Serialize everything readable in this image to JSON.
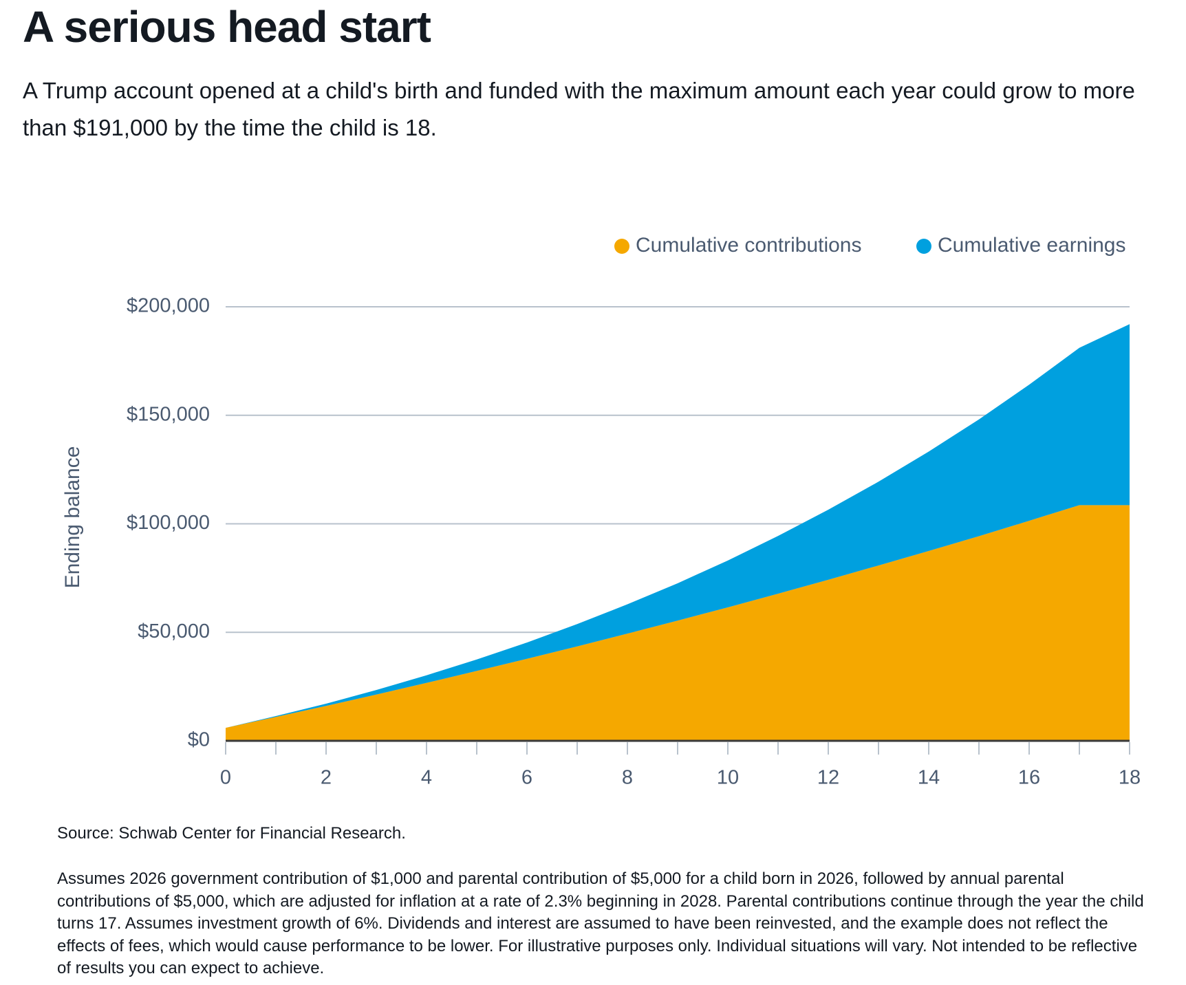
{
  "header": {
    "title": "A serious head start",
    "subtitle": "A Trump account opened at a child's birth and funded with the maximum amount each year could grow to more than $191,000 by the time the child is 18."
  },
  "chart_data": {
    "type": "stacked_area",
    "ylabel": "Ending balance",
    "x": [
      0,
      1,
      2,
      3,
      4,
      5,
      6,
      7,
      8,
      9,
      10,
      11,
      12,
      13,
      14,
      15,
      16,
      17,
      18
    ],
    "series": [
      {
        "name": "Cumulative contributions",
        "color": "#f5a800",
        "values": [
          6000,
          11000,
          16100,
          21300,
          26700,
          32200,
          37800,
          43500,
          49400,
          55400,
          61500,
          67800,
          74200,
          80800,
          87500,
          94300,
          101400,
          108600,
          108600
        ]
      },
      {
        "name": "Cumulative earnings",
        "color": "#00a0df",
        "values": [
          0,
          400,
          1000,
          2100,
          3500,
          5300,
          7500,
          10300,
          13500,
          17200,
          21600,
          26600,
          32300,
          38600,
          45800,
          53800,
          62700,
          72500,
          83400
        ]
      }
    ],
    "xlim": [
      0,
      18
    ],
    "xticks": [
      0,
      2,
      4,
      6,
      8,
      10,
      12,
      14,
      16,
      18
    ],
    "ylim": [
      0,
      200000
    ],
    "yticks": [
      {
        "value": 0,
        "label": "$0"
      },
      {
        "value": 50000,
        "label": "$50,000"
      },
      {
        "value": 100000,
        "label": "$100,000"
      },
      {
        "value": 150000,
        "label": "$150,000"
      },
      {
        "value": 200000,
        "label": "$200,000"
      }
    ],
    "grid": true,
    "legend": "top-right"
  },
  "notes": {
    "source": "Source: Schwab Center for Financial Research.",
    "footnote": "Assumes 2026 government contribution of $1,000 and parental contribution of $5,000 for a child born in 2026, followed by annual parental contributions of $5,000, which are adjusted for inflation at a rate of 2.3% beginning in 2028. Parental contributions continue through the year the child turns 17. Assumes investment growth of 6%. Dividends and interest are assumed to have been reinvested, and the example does not reflect the effects of fees, which would cause performance to be lower. For illustrative purposes only. Individual situations will vary. Not intended to be reflective of results you can expect to achieve."
  }
}
